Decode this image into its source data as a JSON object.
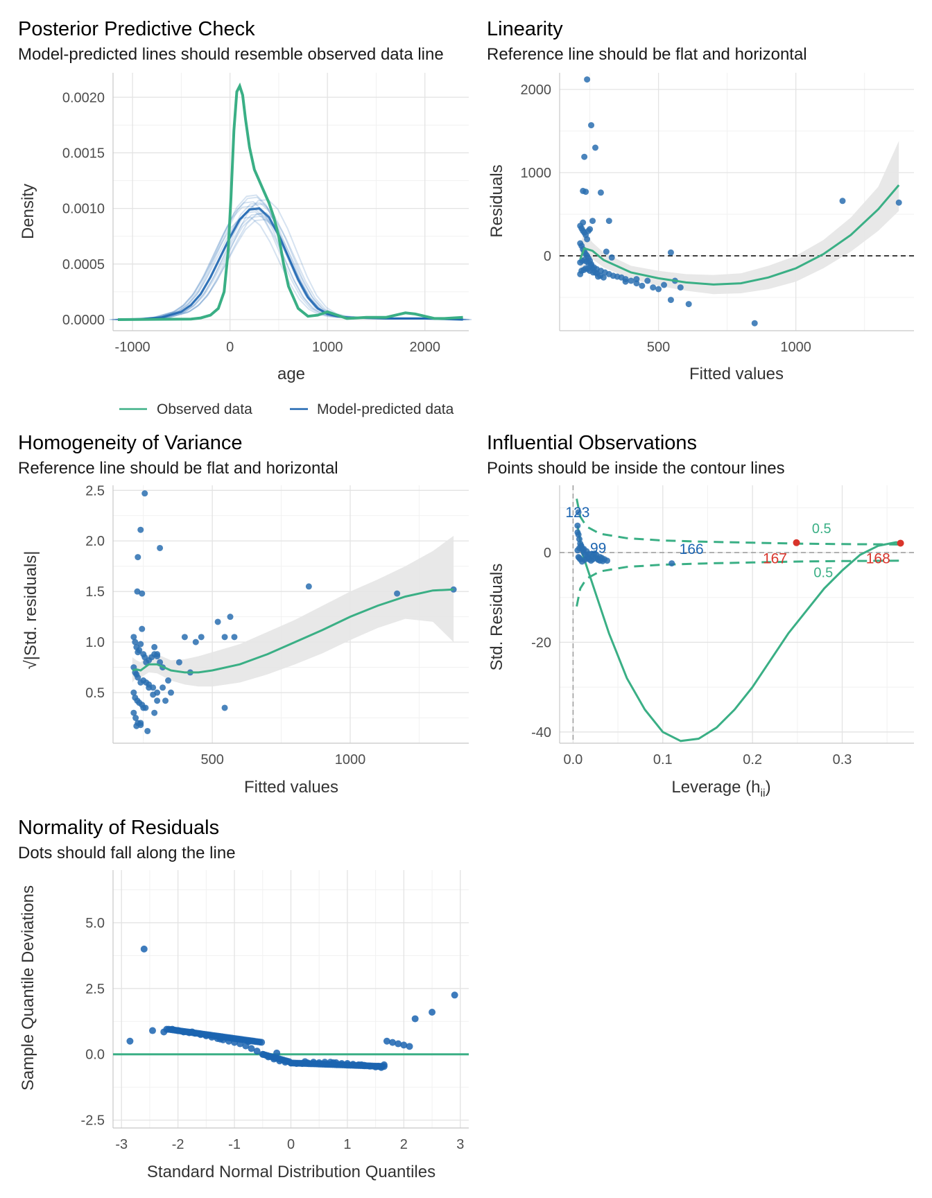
{
  "chart_data": [
    {
      "type": "line",
      "id": "ppc",
      "title": "Posterior Predictive Check",
      "subtitle": "Model-predicted lines should resemble observed data line",
      "xlabel": "age",
      "ylabel": "Density",
      "xlim": [
        -1200,
        2450
      ],
      "ylim": [
        -0.0001,
        0.00222
      ],
      "xticks": [
        -1000,
        0,
        1000,
        2000
      ],
      "xtick_labels": [
        "-1000",
        "0",
        "1000",
        "2000"
      ],
      "yticks": [
        0,
        0.0005,
        0.001,
        0.0015,
        0.002
      ],
      "ytick_labels": [
        "0.0000",
        "0.0005",
        "0.0010",
        "0.0015",
        "0.0020"
      ],
      "grid": true,
      "legend": {
        "position": "bottom",
        "entries": [
          {
            "label": "Observed data",
            "color": "#3aaf85"
          },
          {
            "label": "Model-predicted data",
            "color": "#1b64b0"
          }
        ]
      },
      "series": [
        {
          "name": "Observed data",
          "color": "#3aaf85",
          "x": [
            -1150,
            -400,
            -300,
            -200,
            -120,
            -60,
            -20,
            10,
            40,
            70,
            100,
            130,
            160,
            200,
            250,
            300,
            350,
            400,
            450,
            500,
            550,
            600,
            700,
            800,
            900,
            1000,
            1100,
            1200,
            1400,
            1600,
            1800,
            1900,
            2000,
            2100,
            2200,
            2390
          ],
          "y": [
            0,
            5e-06,
            1.5e-05,
            4e-05,
            0.0001,
            0.00025,
            0.0006,
            0.0011,
            0.0017,
            0.00205,
            0.0021,
            0.00202,
            0.0018,
            0.00155,
            0.00135,
            0.00125,
            0.00115,
            0.00105,
            0.00092,
            0.00075,
            0.0005,
            0.0003,
            0.0001,
            3e-05,
            4e-05,
            7e-05,
            4e-05,
            1e-05,
            2e-05,
            2e-05,
            6e-05,
            5e-05,
            3e-05,
            1e-05,
            1e-05,
            2e-05
          ]
        },
        {
          "name": "Model-predicted data",
          "color": "#1b64b0",
          "x": [
            -1150,
            -900,
            -700,
            -500,
            -400,
            -300,
            -200,
            -100,
            0,
            100,
            200,
            300,
            400,
            500,
            600,
            700,
            800,
            900,
            1000,
            1100,
            1200,
            1400,
            1600,
            1800,
            2000,
            2200,
            2390
          ],
          "y": [
            0,
            5e-06,
            2e-05,
            7e-05,
            0.00013,
            0.00023,
            0.00038,
            0.00056,
            0.00074,
            0.0009,
            0.00099,
            0.001,
            0.00092,
            0.00076,
            0.00056,
            0.00036,
            0.0002,
            0.0001,
            5e-05,
            3e-05,
            2e-05,
            1.5e-05,
            1e-05,
            1e-05,
            1e-05,
            5e-06,
            0
          ]
        }
      ]
    },
    {
      "type": "scatter",
      "id": "linearity",
      "title": "Linearity",
      "subtitle": "Reference line should be flat and horizontal",
      "xlabel": "Fitted values",
      "ylabel": "Residuals",
      "xlim": [
        140,
        1430
      ],
      "ylim": [
        -900,
        2200
      ],
      "xticks": [
        500,
        1000
      ],
      "xtick_labels": [
        "500",
        "1000"
      ],
      "yticks": [
        0,
        1000,
        2000
      ],
      "ytick_labels": [
        "0",
        "1000",
        "2000"
      ],
      "grid": true,
      "reference_line_y": 0,
      "points_x": [
        240,
        255,
        270,
        290,
        320,
        230,
        225,
        235,
        225,
        260,
        215,
        220,
        225,
        230,
        235,
        240,
        245,
        250,
        215,
        220,
        225,
        230,
        235,
        240,
        245,
        250,
        255,
        260,
        270,
        280,
        215,
        220,
        228,
        235,
        242,
        250,
        262,
        275,
        288,
        300,
        215,
        222,
        230,
        238,
        246,
        255,
        265,
        275,
        290,
        305,
        320,
        335,
        350,
        365,
        380,
        400,
        420,
        440,
        460,
        480,
        500,
        520,
        545,
        560,
        580,
        610,
        310,
        330,
        380,
        420,
        545,
        850,
        1170,
        1375
      ],
      "points_y": [
        2120,
        1570,
        1300,
        760,
        420,
        1190,
        780,
        770,
        400,
        420,
        360,
        330,
        300,
        280,
        250,
        200,
        300,
        320,
        150,
        120,
        80,
        50,
        20,
        0,
        -30,
        -60,
        -100,
        -150,
        -200,
        -250,
        -220,
        -180,
        -170,
        -150,
        -160,
        -180,
        -200,
        -210,
        -240,
        -260,
        -80,
        -60,
        -50,
        -70,
        -90,
        -120,
        -140,
        -160,
        -180,
        -200,
        -220,
        -240,
        -250,
        -260,
        -280,
        -300,
        -330,
        -360,
        -300,
        -380,
        -400,
        -350,
        -530,
        -300,
        -380,
        -580,
        50,
        -20,
        -310,
        -280,
        40,
        -810,
        660,
        640
      ],
      "smooth_x": [
        215,
        230,
        260,
        300,
        400,
        500,
        600,
        700,
        800,
        900,
        1000,
        1100,
        1200,
        1300,
        1375
      ],
      "smooth_y": [
        -40,
        90,
        60,
        -50,
        -200,
        -270,
        -320,
        -345,
        -330,
        -260,
        -150,
        20,
        250,
        560,
        850
      ],
      "band_lo": [
        -250,
        -100,
        -40,
        -140,
        -280,
        -360,
        -420,
        -460,
        -450,
        -400,
        -310,
        -150,
        50,
        300,
        540
      ],
      "band_hi": [
        150,
        280,
        160,
        40,
        -120,
        -180,
        -220,
        -230,
        -210,
        -120,
        0,
        190,
        460,
        830,
        1380
      ]
    },
    {
      "type": "scatter",
      "id": "homogeneity",
      "title": "Homogeneity of Variance",
      "subtitle": "Reference line should be flat and horizontal",
      "xlabel": "Fitted values",
      "ylabel": "√|Std. residuals|",
      "xlim": [
        140,
        1430
      ],
      "ylim": [
        0.0,
        2.55
      ],
      "xticks": [
        500,
        1000
      ],
      "xtick_labels": [
        "500",
        "1000"
      ],
      "yticks": [
        0.5,
        1.0,
        1.5,
        2.0,
        2.5
      ],
      "ytick_labels": [
        "0.5",
        "1.0",
        "1.5",
        "2.0",
        "2.5"
      ],
      "grid": true,
      "points_x": [
        255,
        240,
        230,
        310,
        228,
        245,
        215,
        220,
        225,
        230,
        235,
        240,
        245,
        250,
        255,
        260,
        270,
        280,
        290,
        300,
        310,
        320,
        215,
        220,
        225,
        230,
        240,
        250,
        260,
        270,
        285,
        300,
        215,
        220,
        228,
        235,
        245,
        258,
        270,
        285,
        300,
        320,
        340,
        215,
        222,
        230,
        240,
        250,
        265,
        290,
        330,
        350,
        380,
        400,
        420,
        440,
        460,
        520,
        545,
        565,
        580,
        300,
        290,
        545,
        850,
        1170,
        1375,
        225,
        240
      ],
      "points_y": [
        2.47,
        2.11,
        1.84,
        1.93,
        1.5,
        1.48,
        1.05,
        1.0,
        0.95,
        0.9,
        0.92,
        0.98,
        1.13,
        0.88,
        0.85,
        0.8,
        0.82,
        0.85,
        0.88,
        0.86,
        0.8,
        0.75,
        0.75,
        0.7,
        0.68,
        0.65,
        0.6,
        0.62,
        0.6,
        0.58,
        0.55,
        0.5,
        0.5,
        0.45,
        0.42,
        0.4,
        0.38,
        0.35,
        0.55,
        0.48,
        0.42,
        0.55,
        0.62,
        0.3,
        0.25,
        0.2,
        0.18,
        0.35,
        0.12,
        0.3,
        0.42,
        0.5,
        0.8,
        1.05,
        0.7,
        1.0,
        1.05,
        1.2,
        1.05,
        1.25,
        1.05,
        0.88,
        0.95,
        0.35,
        1.55,
        1.48,
        1.52,
        0.17,
        0.2
      ],
      "smooth_x": [
        210,
        225,
        240,
        270,
        300,
        350,
        400,
        450,
        500,
        600,
        700,
        800,
        900,
        1000,
        1100,
        1200,
        1300,
        1375
      ],
      "smooth_y": [
        0.72,
        0.73,
        0.72,
        0.78,
        0.78,
        0.72,
        0.7,
        0.7,
        0.72,
        0.78,
        0.88,
        1.0,
        1.12,
        1.25,
        1.36,
        1.45,
        1.51,
        1.52
      ],
      "band_lo": [
        0.6,
        0.65,
        0.65,
        0.7,
        0.69,
        0.62,
        0.58,
        0.56,
        0.56,
        0.6,
        0.68,
        0.78,
        0.89,
        1.02,
        1.14,
        1.23,
        1.2,
        1.0
      ],
      "band_hi": [
        0.85,
        0.82,
        0.8,
        0.88,
        0.88,
        0.82,
        0.83,
        0.86,
        0.9,
        0.98,
        1.1,
        1.22,
        1.36,
        1.5,
        1.62,
        1.75,
        1.9,
        2.05
      ]
    },
    {
      "type": "scatter",
      "id": "influential",
      "title": "Influential Observations",
      "subtitle": "Points should be inside the contour lines",
      "xlabel": "Leverage (h",
      "xlabel_sub": "ii",
      "xlabel_close": ")",
      "ylabel": "Std. Residuals",
      "xlim": [
        -0.015,
        0.38
      ],
      "ylim": [
        -42.5,
        15
      ],
      "xticks": [
        0.0,
        0.1,
        0.2,
        0.3
      ],
      "xtick_labels": [
        "0.0",
        "0.1",
        "0.2",
        "0.3"
      ],
      "yticks": [
        -40,
        -20,
        0
      ],
      "ytick_labels": [
        "-40",
        "-20",
        "0"
      ],
      "grid": true,
      "points_x": [
        0.005,
        0.006,
        0.007,
        0.008,
        0.009,
        0.01,
        0.011,
        0.012,
        0.014,
        0.016,
        0.018,
        0.02,
        0.022,
        0.025,
        0.028,
        0.03,
        0.032,
        0.035,
        0.038,
        0.005,
        0.007,
        0.009,
        0.012,
        0.015,
        0.018,
        0.022,
        0.026,
        0.03,
        0.006,
        0.008,
        0.01,
        0.013,
        0.016,
        0.02,
        0.024,
        0.028,
        0.033,
        0.006,
        0.005,
        0.007,
        0.11
      ],
      "points_y": [
        6,
        4,
        3,
        2,
        1.5,
        1,
        0.5,
        0,
        -0.5,
        -1,
        -1.5,
        -1.8,
        -1.5,
        -1.2,
        -1.6,
        -1.8,
        -1.2,
        -1.5,
        -1.8,
        0.5,
        1,
        1.5,
        0.8,
        0.3,
        -0.3,
        -0.8,
        -0.5,
        -1,
        -1,
        -1.5,
        -2,
        -1.6,
        -1.2,
        -0.4,
        -0.2,
        -1.4,
        -1.9,
        9,
        4.5,
        -1.2,
        -2.4
      ],
      "highlight_points": [
        {
          "x": 0.249,
          "y": 2.2,
          "color": "#d9342b"
        },
        {
          "x": 0.365,
          "y": 2.1,
          "color": "#d9342b"
        }
      ],
      "point_labels": [
        {
          "text": "123",
          "x": 0.005,
          "y": 9.0,
          "color": "#1b64b0"
        },
        {
          "text": "99",
          "x": 0.028,
          "y": 1.0,
          "color": "#1b64b0"
        },
        {
          "text": "166",
          "x": 0.132,
          "y": 0.8,
          "color": "#1b64b0"
        },
        {
          "text": "167",
          "x": 0.225,
          "y": -1.3,
          "color": "#d9342b"
        },
        {
          "text": "168",
          "x": 0.34,
          "y": -1.3,
          "color": "#d9342b"
        }
      ],
      "contour_labels": [
        {
          "text": "0.5",
          "x": 0.277,
          "y": 5.4
        },
        {
          "text": "0.5",
          "x": 0.279,
          "y": -4.4
        }
      ],
      "contour_upper_x": [
        0.004,
        0.008,
        0.015,
        0.03,
        0.06,
        0.1,
        0.15,
        0.2,
        0.25,
        0.3,
        0.37
      ],
      "contour_upper_y": [
        12,
        8,
        5.8,
        4.2,
        3.2,
        2.7,
        2.4,
        2.2,
        2.0,
        1.9,
        1.8
      ],
      "contour_lower_x": [
        0.004,
        0.008,
        0.015,
        0.03,
        0.06,
        0.1,
        0.15,
        0.2,
        0.25,
        0.3,
        0.37
      ],
      "contour_lower_y": [
        -12,
        -8,
        -5.8,
        -4.2,
        -3.2,
        -2.7,
        -2.4,
        -2.2,
        -2.0,
        -1.9,
        -1.8
      ],
      "smooth_x": [
        0.005,
        0.01,
        0.02,
        0.04,
        0.06,
        0.08,
        0.1,
        0.12,
        0.14,
        0.16,
        0.18,
        0.2,
        0.22,
        0.24,
        0.26,
        0.28,
        0.3,
        0.32,
        0.34,
        0.36,
        0.365
      ],
      "smooth_y": [
        6,
        0,
        -6,
        -18,
        -28,
        -35,
        -40,
        -42,
        -41.5,
        -39,
        -35,
        -30,
        -24,
        -18,
        -13,
        -8,
        -4,
        -0.5,
        1.5,
        2.3,
        2.2
      ]
    },
    {
      "type": "scatter",
      "id": "normality",
      "title": "Normality of Residuals",
      "subtitle": "Dots should fall along the line",
      "xlabel": "Standard Normal Distribution Quantiles",
      "ylabel": "Sample Quantile Deviations",
      "xlim": [
        -3.15,
        3.15
      ],
      "ylim": [
        -2.8,
        7.0
      ],
      "xticks": [
        -3,
        -2,
        -1,
        0,
        1,
        2,
        3
      ],
      "xtick_labels": [
        "-3",
        "-2",
        "-1",
        "0",
        "1",
        "2",
        "3"
      ],
      "yticks": [
        -2.5,
        0.0,
        2.5,
        5.0
      ],
      "ytick_labels": [
        "-2.5",
        "0.0",
        "2.5",
        "5.0"
      ],
      "grid": true,
      "reference_line_y": 0,
      "points_x": [
        -2.85,
        -2.45,
        -2.25,
        -2.1,
        -2.0,
        -1.9,
        -1.8,
        -1.7,
        -1.6,
        -1.5,
        -1.4,
        -1.3,
        -1.2,
        -1.1,
        -1.0,
        -0.9,
        -0.8,
        -0.7,
        -0.6,
        -0.5,
        -0.4,
        -0.3,
        -0.2,
        -0.1,
        0.0,
        0.1,
        0.2,
        0.3,
        0.4,
        0.5,
        0.6,
        0.7,
        0.8,
        0.9,
        1.0,
        1.1,
        1.2,
        1.3,
        1.4,
        1.5,
        1.6,
        1.65,
        1.7,
        1.8,
        1.9,
        2.0,
        2.1,
        2.2,
        2.5,
        2.9,
        -2.6,
        -1.75,
        -1.25,
        -0.75,
        -0.25,
        0.25,
        0.75,
        1.25,
        1.55
      ],
      "points_y": [
        0.5,
        0.9,
        0.85,
        0.95,
        0.9,
        0.85,
        0.82,
        0.8,
        0.75,
        0.7,
        0.65,
        0.6,
        0.55,
        0.5,
        0.45,
        0.4,
        0.32,
        0.22,
        0.12,
        0.0,
        -0.1,
        -0.18,
        -0.25,
        -0.3,
        -0.33,
        -0.35,
        -0.35,
        -0.33,
        -0.3,
        -0.32,
        -0.3,
        -0.3,
        -0.32,
        -0.35,
        -0.35,
        -0.38,
        -0.4,
        -0.42,
        -0.45,
        -0.48,
        -0.5,
        -0.4,
        0.5,
        0.45,
        0.4,
        0.35,
        0.3,
        1.35,
        1.6,
        2.25,
        4.0,
        0.85,
        0.58,
        0.48,
        0.05,
        -0.28,
        -0.32,
        -0.4,
        -0.46
      ]
    }
  ]
}
